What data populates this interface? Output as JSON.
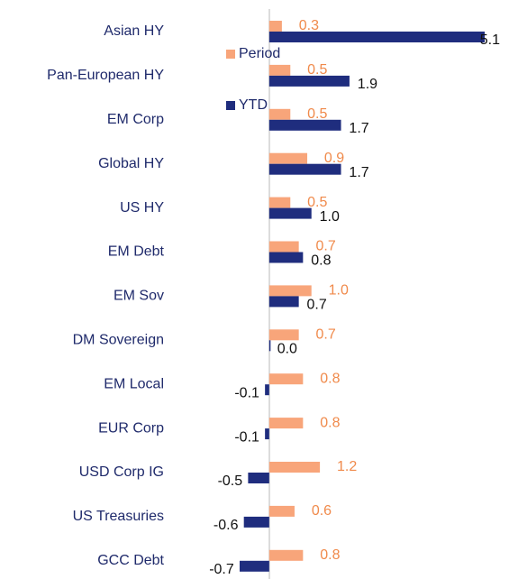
{
  "chart_data": {
    "type": "bar",
    "orientation": "horizontal",
    "categories": [
      "Asian HY",
      "Pan-European HY",
      "EM Corp",
      "Global HY",
      "US HY",
      "EM Debt",
      "EM Sov",
      "DM Sovereign",
      "EM Local",
      "EUR Corp",
      "USD Corp IG",
      "US Treasuries",
      "GCC Debt"
    ],
    "series": [
      {
        "name": "Period",
        "color": "#f8a57a",
        "values": [
          0.3,
          0.5,
          0.5,
          0.9,
          0.5,
          0.7,
          1.0,
          0.7,
          0.8,
          0.8,
          1.2,
          0.6,
          0.8
        ],
        "value_labels": [
          "0.3",
          "0.5",
          "0.5",
          "0.9",
          "0.5",
          "0.7",
          "1.0",
          "0.7",
          "0.8",
          "0.8",
          "1.2",
          "0.6",
          "0.8"
        ]
      },
      {
        "name": "YTD",
        "color": "#1f2d7e",
        "values": [
          5.1,
          1.9,
          1.7,
          1.7,
          1.0,
          0.8,
          0.7,
          0.0,
          -0.1,
          -0.1,
          -0.5,
          -0.6,
          -0.7
        ],
        "value_labels": [
          "5.1",
          "1.9",
          "1.7",
          "1.7",
          "1.0",
          "0.8",
          "0.7",
          "0.0",
          "-0.1",
          "-0.1",
          "-0.5",
          "-0.6",
          "-0.7"
        ]
      }
    ],
    "xlim": [
      -0.7,
      5.1
    ]
  }
}
